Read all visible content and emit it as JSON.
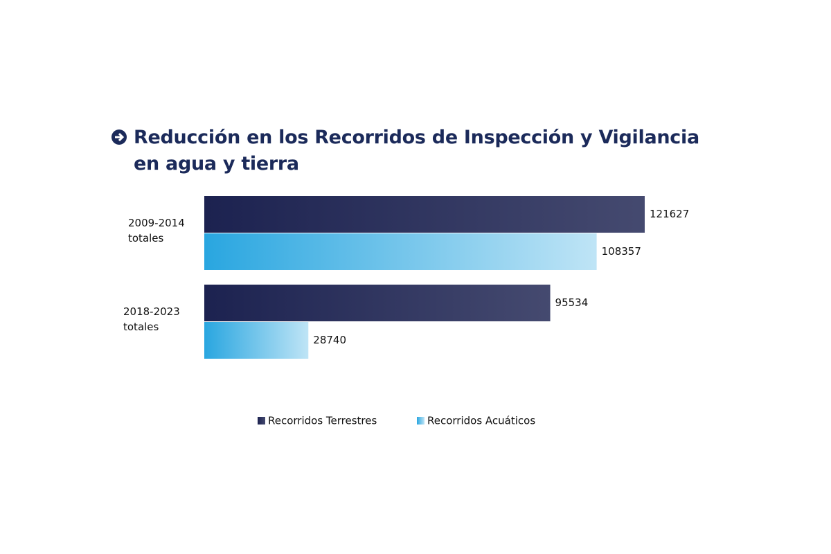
{
  "chart_data": {
    "type": "hbar",
    "title": "Reducción en los Recorridos de Inspección y Vigilancia en agua y tierra",
    "categories": [
      "2009-2014 totales",
      "2018-2023 totales"
    ],
    "series": [
      {
        "name": "Recorridos Terrestres",
        "color": "#1c2250",
        "values": [
          121627,
          95534
        ]
      },
      {
        "name": "Recorridos Acuáticos",
        "color": "#29a6e0",
        "values": [
          108357,
          28740
        ]
      }
    ]
  }
}
